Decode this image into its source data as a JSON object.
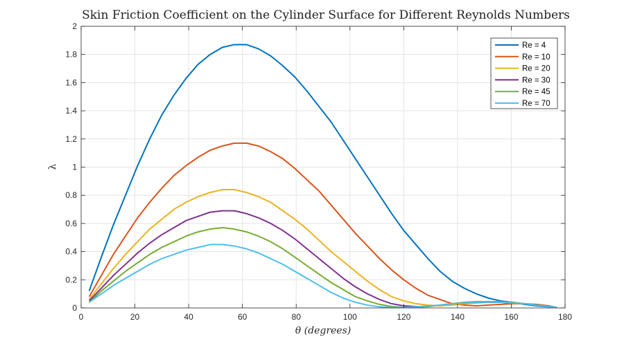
{
  "chart_data": {
    "type": "line",
    "title": "Skin Friction Coefficient on the Cylinder Surface for Different Reynolds Numbers",
    "xlabel": "θ (degrees)",
    "ylabel": "λ",
    "xlim": [
      0,
      180
    ],
    "ylim": [
      0,
      2
    ],
    "xticks": [
      0,
      20,
      40,
      60,
      80,
      100,
      120,
      140,
      160,
      180
    ],
    "yticks": [
      0,
      0.2,
      0.4,
      0.6,
      0.8,
      1,
      1.2,
      1.4,
      1.6,
      1.8,
      2
    ],
    "ytick_labels": [
      "0",
      "0.2",
      "0.4",
      "0.6",
      "0.8",
      "1",
      "1.2",
      "1.4",
      "1.6",
      "1.8",
      "2"
    ],
    "grid": true,
    "legend_position": "top-right",
    "x": [
      3,
      7.5,
      12,
      16.5,
      21,
      25.5,
      30,
      34.5,
      39,
      43.5,
      48,
      52.5,
      57,
      61.5,
      66,
      70.5,
      75,
      79.5,
      84,
      88.5,
      93,
      97.5,
      102,
      106.5,
      111,
      115.5,
      120,
      124.5,
      129,
      133.5,
      138,
      142.5,
      147,
      151.5,
      156,
      160.5,
      165,
      169.5,
      174,
      177
    ],
    "series": [
      {
        "name": "Re = 4",
        "color": "#0072bd",
        "values": [
          0.12,
          0.36,
          0.59,
          0.8,
          1.01,
          1.2,
          1.37,
          1.51,
          1.63,
          1.73,
          1.8,
          1.85,
          1.87,
          1.87,
          1.84,
          1.79,
          1.72,
          1.64,
          1.54,
          1.43,
          1.32,
          1.19,
          1.06,
          0.93,
          0.8,
          0.67,
          0.55,
          0.45,
          0.35,
          0.26,
          0.19,
          0.14,
          0.1,
          0.07,
          0.05,
          0.04,
          0.025,
          0.015,
          0.008,
          0.003
        ]
      },
      {
        "name": "Re = 10",
        "color": "#d95319",
        "values": [
          0.08,
          0.23,
          0.38,
          0.51,
          0.64,
          0.75,
          0.85,
          0.94,
          1.01,
          1.07,
          1.12,
          1.15,
          1.17,
          1.17,
          1.15,
          1.11,
          1.06,
          0.99,
          0.91,
          0.83,
          0.73,
          0.63,
          0.53,
          0.44,
          0.35,
          0.27,
          0.2,
          0.14,
          0.09,
          0.06,
          0.03,
          0.02,
          0.015,
          0.02,
          0.025,
          0.03,
          0.03,
          0.025,
          0.015,
          0.003
        ]
      },
      {
        "name": "Re = 20",
        "color": "#edb120",
        "values": [
          0.06,
          0.17,
          0.28,
          0.38,
          0.47,
          0.56,
          0.63,
          0.7,
          0.75,
          0.79,
          0.82,
          0.84,
          0.84,
          0.82,
          0.79,
          0.75,
          0.69,
          0.63,
          0.56,
          0.48,
          0.4,
          0.33,
          0.26,
          0.19,
          0.13,
          0.08,
          0.05,
          0.03,
          0.02,
          0.015,
          0.02,
          0.03,
          0.035,
          0.04,
          0.04,
          0.035,
          0.03,
          0.02,
          0.01,
          0.003
        ]
      },
      {
        "name": "Re = 30",
        "color": "#7e2f8e",
        "values": [
          0.05,
          0.14,
          0.23,
          0.31,
          0.39,
          0.46,
          0.52,
          0.57,
          0.62,
          0.65,
          0.68,
          0.69,
          0.69,
          0.67,
          0.64,
          0.6,
          0.55,
          0.49,
          0.42,
          0.35,
          0.28,
          0.21,
          0.15,
          0.1,
          0.06,
          0.03,
          0.015,
          0.01,
          0.01,
          0.02,
          0.03,
          0.035,
          0.04,
          0.04,
          0.04,
          0.035,
          0.03,
          0.02,
          0.01,
          0.003
        ]
      },
      {
        "name": "Re = 45",
        "color": "#77ac30",
        "values": [
          0.04,
          0.12,
          0.19,
          0.26,
          0.32,
          0.38,
          0.43,
          0.47,
          0.51,
          0.54,
          0.56,
          0.57,
          0.56,
          0.54,
          0.51,
          0.47,
          0.42,
          0.36,
          0.3,
          0.24,
          0.18,
          0.13,
          0.08,
          0.05,
          0.025,
          0.01,
          0.005,
          0.005,
          0.01,
          0.02,
          0.03,
          0.04,
          0.045,
          0.045,
          0.045,
          0.04,
          0.03,
          0.02,
          0.01,
          0.003
        ]
      },
      {
        "name": "Re = 70",
        "color": "#4dbeee",
        "values": [
          0.04,
          0.1,
          0.16,
          0.21,
          0.26,
          0.31,
          0.35,
          0.38,
          0.41,
          0.43,
          0.45,
          0.45,
          0.44,
          0.42,
          0.39,
          0.35,
          0.31,
          0.26,
          0.21,
          0.16,
          0.11,
          0.07,
          0.04,
          0.02,
          0.008,
          0.003,
          0.003,
          0.008,
          0.015,
          0.02,
          0.03,
          0.035,
          0.04,
          0.04,
          0.04,
          0.035,
          0.03,
          0.02,
          0.01,
          0.003
        ]
      }
    ]
  }
}
